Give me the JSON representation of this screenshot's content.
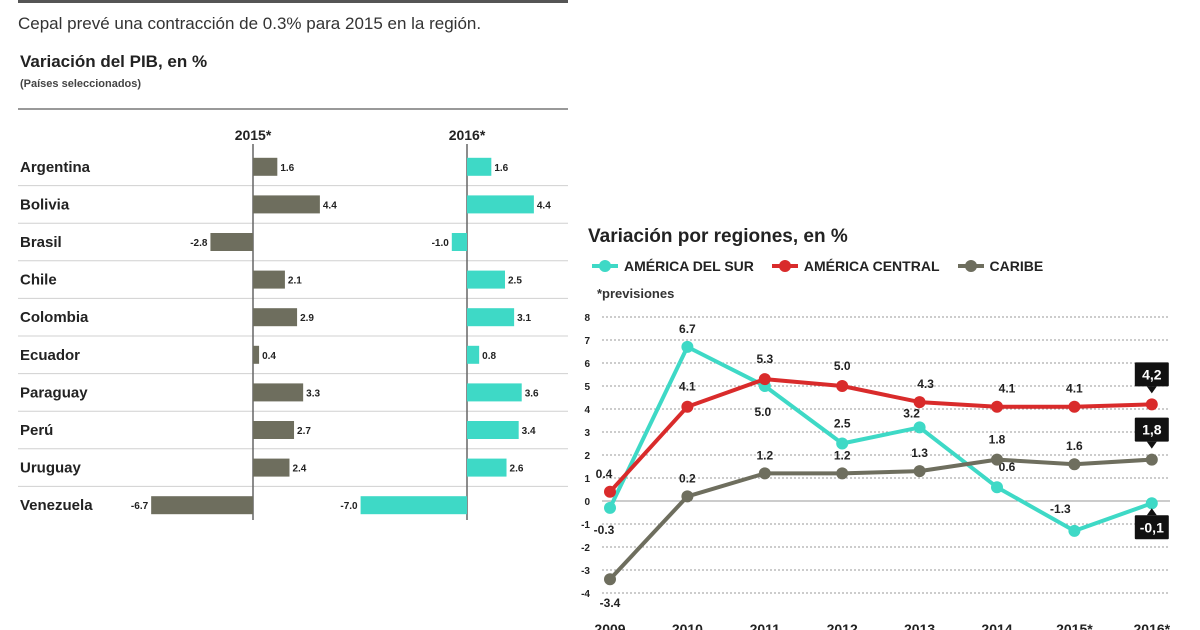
{
  "headline": "Cepal prevé una contracción de 0.3% para 2015 en la región.",
  "chart_data": [
    {
      "type": "bar",
      "title": "Variación del PIB, en %",
      "subtitle": "(Países seleccionados)",
      "categories": [
        "Argentina",
        "Bolivia",
        "Brasil",
        "Chile",
        "Colombia",
        "Ecuador",
        "Paraguay",
        "Perú",
        "Uruguay",
        "Venezuela"
      ],
      "series": [
        {
          "name": "2015*",
          "color": "#6e6e5e",
          "values": [
            1.6,
            4.4,
            -2.8,
            2.1,
            2.9,
            0.4,
            3.3,
            2.7,
            2.4,
            -6.7
          ],
          "labels": [
            "1.6",
            "4.4",
            "-2.8",
            "2.1",
            "2.9",
            "0.4",
            "3.3",
            "2.7",
            "2.4",
            "-6.7"
          ]
        },
        {
          "name": "2016*",
          "color": "#3ed9c6",
          "values": [
            1.6,
            4.4,
            -1.0,
            2.5,
            3.1,
            0.8,
            3.6,
            3.4,
            2.6,
            -7.0
          ],
          "labels": [
            "1.6",
            "4.4",
            "-1.0",
            "2.5",
            "3.1",
            "0.8",
            "3.6",
            "3.4",
            "2.6",
            "-7.0"
          ]
        }
      ]
    },
    {
      "type": "line",
      "title": "Variación por regiones, en %",
      "footnote": "*previsiones",
      "x": [
        "2009",
        "2010",
        "2011",
        "2012",
        "2013",
        "2014",
        "2015*",
        "2016*"
      ],
      "ylim": [
        -4,
        8
      ],
      "yticks": [
        "8",
        "7",
        "6",
        "5",
        "4",
        "3",
        "2",
        "1",
        "0",
        "-1",
        "-2",
        "-3",
        "-4"
      ],
      "series": [
        {
          "name": "AMÉRICA DEL SUR",
          "color": "#3ed9c6",
          "values": [
            -0.3,
            6.7,
            5.0,
            2.5,
            3.2,
            0.6,
            -1.3,
            -0.1
          ],
          "labels": [
            "-0.3",
            "6.7",
            "5.0",
            "2.5",
            "3.2",
            "0.6",
            "-1.3",
            "-0,1"
          ]
        },
        {
          "name": "AMÉRICA CENTRAL",
          "color": "#d92b2b",
          "values": [
            0.4,
            4.1,
            5.3,
            5.0,
            4.3,
            4.1,
            4.1,
            4.2
          ],
          "labels": [
            "0.4",
            "4.1",
            "5.3",
            "5.0",
            "4.3",
            "4.1",
            "4.1",
            "4,2"
          ]
        },
        {
          "name": "CARIBE",
          "color": "#6e6e5e",
          "values": [
            -3.4,
            0.2,
            1.2,
            1.2,
            1.3,
            1.8,
            1.6,
            1.8
          ],
          "labels": [
            "-3.4",
            "0.2",
            "1.2",
            "1.2",
            "1.3",
            "1.8",
            "1.6",
            "1,8"
          ]
        }
      ]
    }
  ]
}
